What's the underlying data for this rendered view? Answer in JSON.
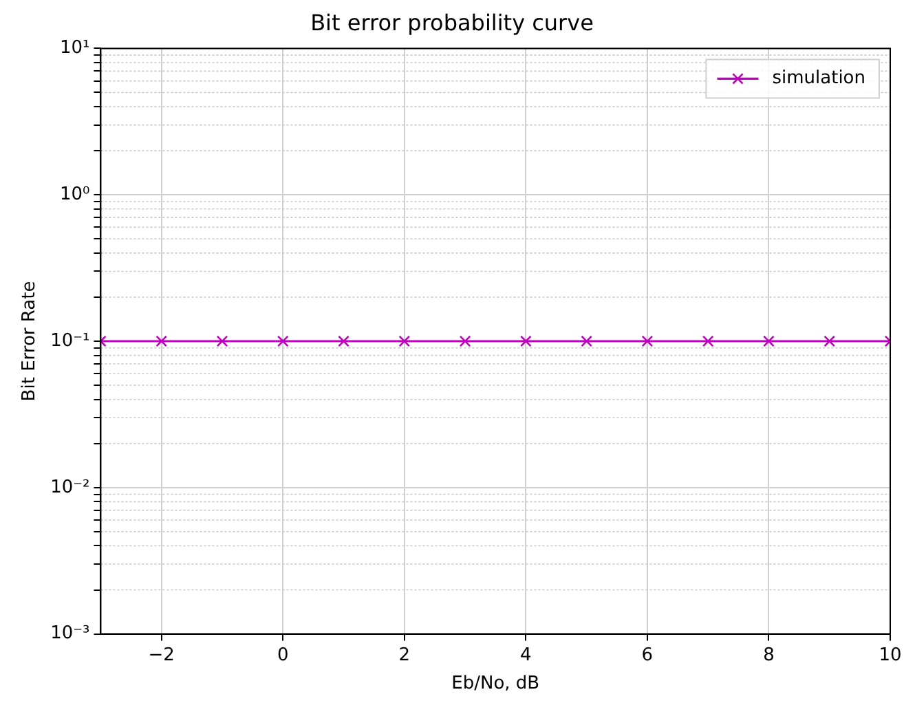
{
  "chart_data": {
    "type": "line",
    "title": "Bit error probability curve",
    "xlabel": "Eb/No, dB",
    "ylabel": "Bit Error Rate",
    "x": [
      -3,
      -2,
      -1,
      0,
      1,
      2,
      3,
      4,
      5,
      6,
      7,
      8,
      9,
      10
    ],
    "series": [
      {
        "name": "simulation",
        "color": "#bf00bf",
        "values": [
          0.1,
          0.1,
          0.1,
          0.1,
          0.1,
          0.1,
          0.1,
          0.1,
          0.1,
          0.1,
          0.1,
          0.1,
          0.1,
          0.1
        ]
      }
    ],
    "xlim": [
      -3,
      10
    ],
    "xticks": [
      {
        "value": -2,
        "label": "−2"
      },
      0,
      2,
      4,
      6,
      8,
      10
    ],
    "ylim": [
      0.001,
      10
    ],
    "yticks": [
      {
        "value": 0.001,
        "label": "10⁻³"
      },
      {
        "value": 0.002,
        "label": null
      },
      {
        "value": 0.003,
        "label": null
      },
      {
        "value": 0.004,
        "label": null
      },
      {
        "value": 0.005,
        "label": null
      },
      {
        "value": 0.006,
        "label": null
      },
      {
        "value": 0.007,
        "label": null
      },
      {
        "value": 0.008,
        "label": null
      },
      {
        "value": 0.009,
        "label": null
      },
      {
        "value": 0.01,
        "label": "10⁻²"
      },
      {
        "value": 0.02,
        "label": null
      },
      {
        "value": 0.03,
        "label": null
      },
      {
        "value": 0.04,
        "label": null
      },
      {
        "value": 0.05,
        "label": null
      },
      {
        "value": 0.06,
        "label": null
      },
      {
        "value": 0.07,
        "label": null
      },
      {
        "value": 0.08,
        "label": null
      },
      {
        "value": 0.09,
        "label": null
      },
      {
        "value": 0.1,
        "label": "10⁻¹"
      },
      {
        "value": 0.2,
        "label": null
      },
      {
        "value": 0.3,
        "label": null
      },
      {
        "value": 0.4,
        "label": null
      },
      {
        "value": 0.5,
        "label": null
      },
      {
        "value": 0.6,
        "label": null
      },
      {
        "value": 0.7,
        "label": null
      },
      {
        "value": 0.8,
        "label": null
      },
      {
        "value": 0.9,
        "label": null
      },
      {
        "value": 1,
        "label": "10⁰"
      },
      {
        "value": 2,
        "label": null
      },
      {
        "value": 3,
        "label": null
      },
      {
        "value": 4,
        "label": null
      },
      {
        "value": 5,
        "label": null
      },
      {
        "value": 6,
        "label": null
      },
      {
        "value": 7,
        "label": null
      },
      {
        "value": 8,
        "label": null
      },
      {
        "value": 9,
        "label": null
      },
      {
        "value": 10,
        "label": "10¹"
      }
    ],
    "log": "y",
    "grid": true,
    "legend": "top right",
    "marker": "cross",
    "line_style": "solid"
  }
}
